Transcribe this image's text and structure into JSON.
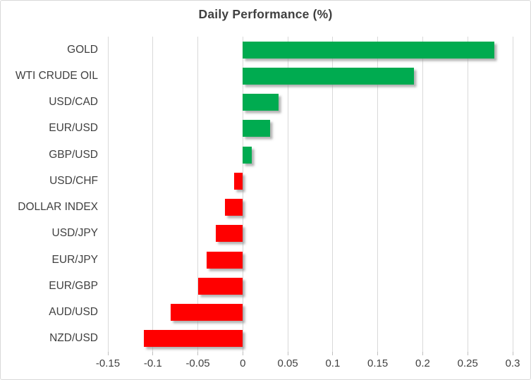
{
  "chart_data": {
    "type": "bar",
    "orientation": "horizontal",
    "title": "Daily Performance (%)",
    "categories": [
      "GOLD",
      "WTI CRUDE OIL",
      "USD/CAD",
      "EUR/USD",
      "GBP/USD",
      "USD/CHF",
      "DOLLAR INDEX",
      "USD/JPY",
      "EUR/JPY",
      "EUR/GBP",
      "AUD/USD",
      "NZD/USD"
    ],
    "values": [
      0.28,
      0.19,
      0.04,
      0.03,
      0.01,
      -0.01,
      -0.02,
      -0.03,
      -0.04,
      -0.05,
      -0.08,
      -0.11
    ],
    "xlim": [
      -0.15,
      0.3
    ],
    "x_ticks": [
      -0.15,
      -0.1,
      -0.05,
      0,
      0.05,
      0.1,
      0.15,
      0.2,
      0.25,
      0.3
    ],
    "x_tick_labels": [
      "-0.15",
      "-0.1",
      "-0.05",
      "0",
      "0.05",
      "0.1",
      "0.15",
      "0.2",
      "0.25",
      "0.3"
    ],
    "grid": "vertical-only",
    "legend": "none",
    "xlabel": "",
    "ylabel": "",
    "colors": {
      "positive_bar": "#00AB50",
      "negative_bar": "#FF0000",
      "gridline": "#D9D9D9",
      "title_text": "#404040",
      "axis_text": "#404040",
      "frame_border": "#D9D9D9",
      "background": "#FFFFFF"
    }
  }
}
